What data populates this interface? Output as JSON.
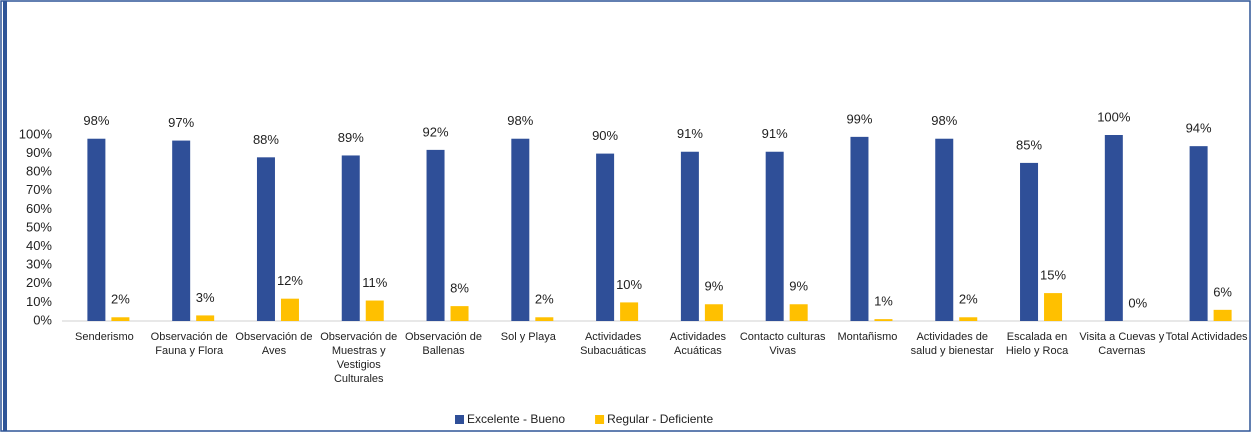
{
  "chart_data": {
    "type": "bar",
    "categories": [
      "Senderismo",
      "Observación de Fauna y Flora",
      "Observación de Aves",
      "Observación de Muestras y Vestigios Culturales",
      "Observación de Ballenas",
      "Sol y Playa",
      "Actividades Subacuáticas",
      "Actividades Acuáticas",
      "Contacto culturas Vivas",
      "Montañismo",
      "Actividades de salud y bienestar",
      "Escalada en Hielo y Roca",
      "Visita a Cuevas y Cavernas",
      "Total Actividades"
    ],
    "series": [
      {
        "name": "Excelente - Bueno",
        "color": "#2f4f98",
        "values": [
          98,
          97,
          88,
          89,
          92,
          98,
          90,
          91,
          91,
          99,
          98,
          85,
          100,
          94
        ],
        "value_labels": [
          "98%",
          "97%",
          "88%",
          "89%",
          "92%",
          "98%",
          "90%",
          "91%",
          "91%",
          "99%",
          "98%",
          "85%",
          "100%",
          "94%"
        ]
      },
      {
        "name": "Regular - Deficiente",
        "color": "#ffc000",
        "values": [
          2,
          3,
          12,
          11,
          8,
          2,
          10,
          9,
          9,
          1,
          2,
          15,
          0,
          6
        ],
        "value_labels": [
          "2%",
          "3%",
          "12%",
          "11%",
          "8%",
          "2%",
          "10%",
          "9%",
          "9%",
          "1%",
          "2%",
          "15%",
          "0%",
          "6%"
        ]
      }
    ],
    "ylim": [
      0,
      100
    ],
    "yticks": [
      {
        "value": 0,
        "label": "0%"
      },
      {
        "value": 10,
        "label": "10%"
      },
      {
        "value": 20,
        "label": "20%"
      },
      {
        "value": 30,
        "label": "30%"
      },
      {
        "value": 40,
        "label": "40%"
      },
      {
        "value": 50,
        "label": "50%"
      },
      {
        "value": 60,
        "label": "60%"
      },
      {
        "value": 70,
        "label": "70%"
      },
      {
        "value": 80,
        "label": "80%"
      },
      {
        "value": 90,
        "label": "90%"
      },
      {
        "value": 100,
        "label": "100%"
      }
    ],
    "grid": false,
    "legend": "bottom"
  }
}
